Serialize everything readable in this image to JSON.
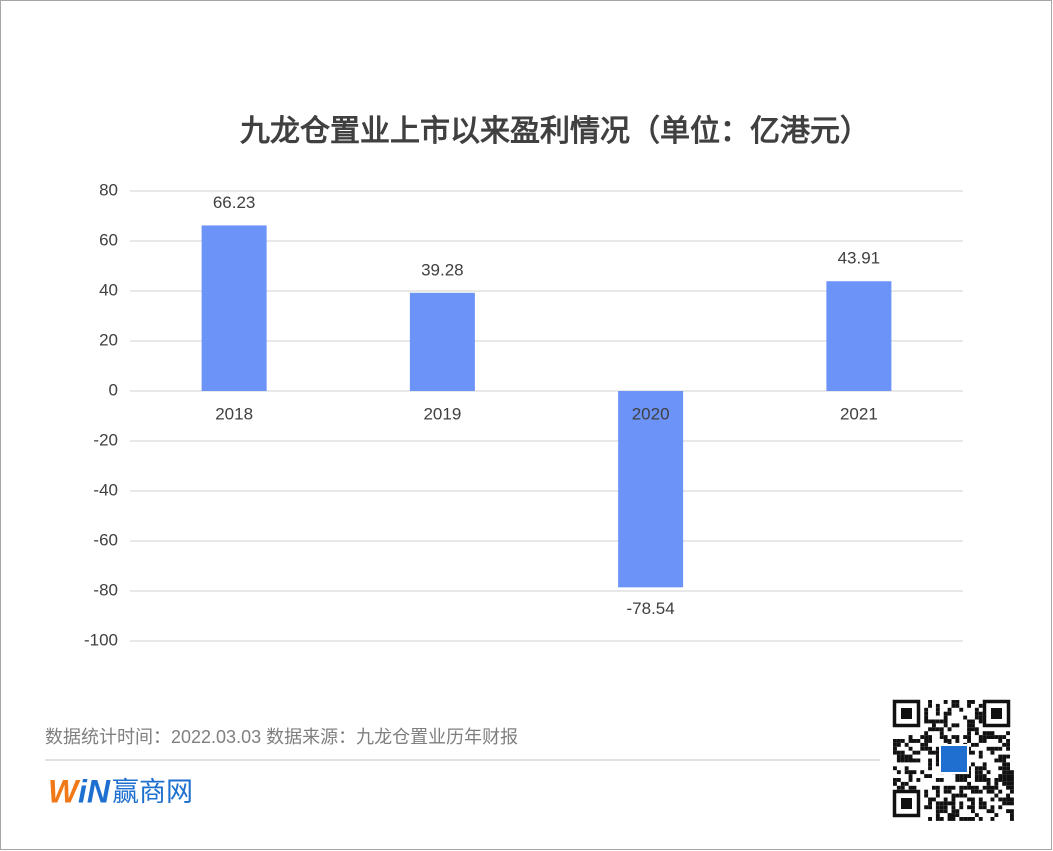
{
  "chart_data": {
    "type": "bar",
    "title": "九龙仓置业上市以来盈利情况（单位：亿港元）",
    "categories": [
      "2018",
      "2019",
      "2020",
      "2021"
    ],
    "values": [
      66.23,
      39.28,
      -78.54,
      43.91
    ],
    "color": "#6b93f8",
    "ylim": [
      -100,
      80
    ],
    "yticks": [
      -100,
      -80,
      -60,
      -40,
      -20,
      0,
      20,
      40,
      60,
      80
    ],
    "grid": true
  },
  "footer": {
    "source": "数据统计时间：2022.03.03  数据来源：九龙仓置业历年财报",
    "logo_mark": [
      "W",
      "iN"
    ],
    "logo_name": "赢商网"
  }
}
